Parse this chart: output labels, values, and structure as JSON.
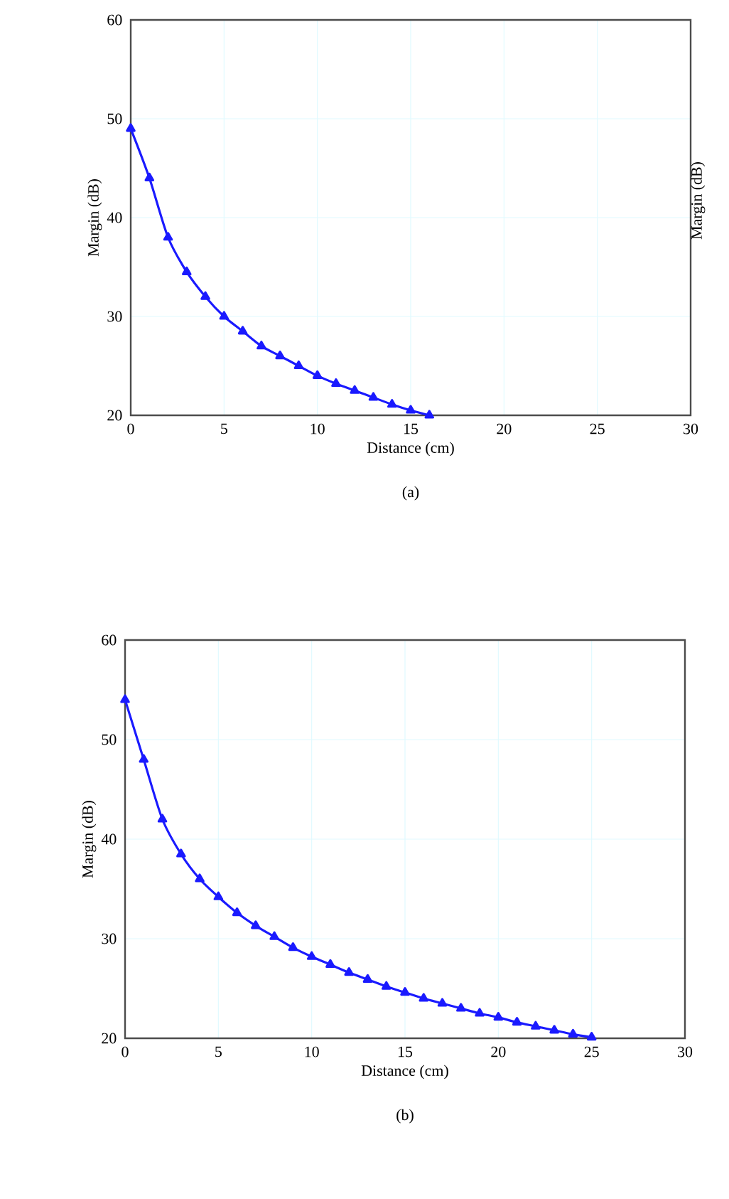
{
  "chart_data": [
    {
      "type": "line",
      "title": "(a)",
      "xlabel": "Distance (cm)",
      "ylabel": "Margin (dB)",
      "y2label": "Margin (dB)",
      "color": "#1a1aff",
      "marker": "triangle",
      "grid": true,
      "x": [
        0,
        1,
        2,
        3,
        4,
        5,
        6,
        7,
        8,
        9,
        10,
        11,
        12,
        13,
        14,
        15,
        16
      ],
      "values": [
        49,
        44,
        38,
        34.5,
        32,
        30,
        28.5,
        27,
        26,
        25,
        24,
        23.2,
        22.5,
        21.8,
        21.1,
        20.5,
        20
      ],
      "xlim": [
        0,
        30
      ],
      "ylim": [
        20,
        60
      ],
      "xticks": [
        0,
        5,
        10,
        15,
        20,
        25,
        30
      ],
      "yticks": [
        20,
        30,
        40,
        50,
        60
      ]
    },
    {
      "type": "line",
      "title": "(b)",
      "xlabel": "Distance (cm)",
      "ylabel": "Margin (dB)",
      "color": "#1a1aff",
      "marker": "triangle",
      "grid": true,
      "x": [
        0,
        1,
        2,
        3,
        4,
        5,
        6,
        7,
        8,
        9,
        10,
        11,
        12,
        13,
        14,
        15,
        16,
        17,
        18,
        19,
        20,
        21,
        22,
        23,
        24,
        25
      ],
      "values": [
        54,
        48,
        42,
        38.5,
        36,
        34.2,
        32.6,
        31.3,
        30.2,
        29.1,
        28.2,
        27.4,
        26.6,
        25.9,
        25.2,
        24.6,
        24,
        23.5,
        23,
        22.5,
        22.1,
        21.6,
        21.2,
        20.8,
        20.4,
        20.1
      ],
      "xlim": [
        0,
        30
      ],
      "ylim": [
        20,
        60
      ],
      "xticks": [
        0,
        5,
        10,
        15,
        20,
        25,
        30
      ],
      "yticks": [
        20,
        30,
        40,
        50,
        60
      ]
    }
  ]
}
